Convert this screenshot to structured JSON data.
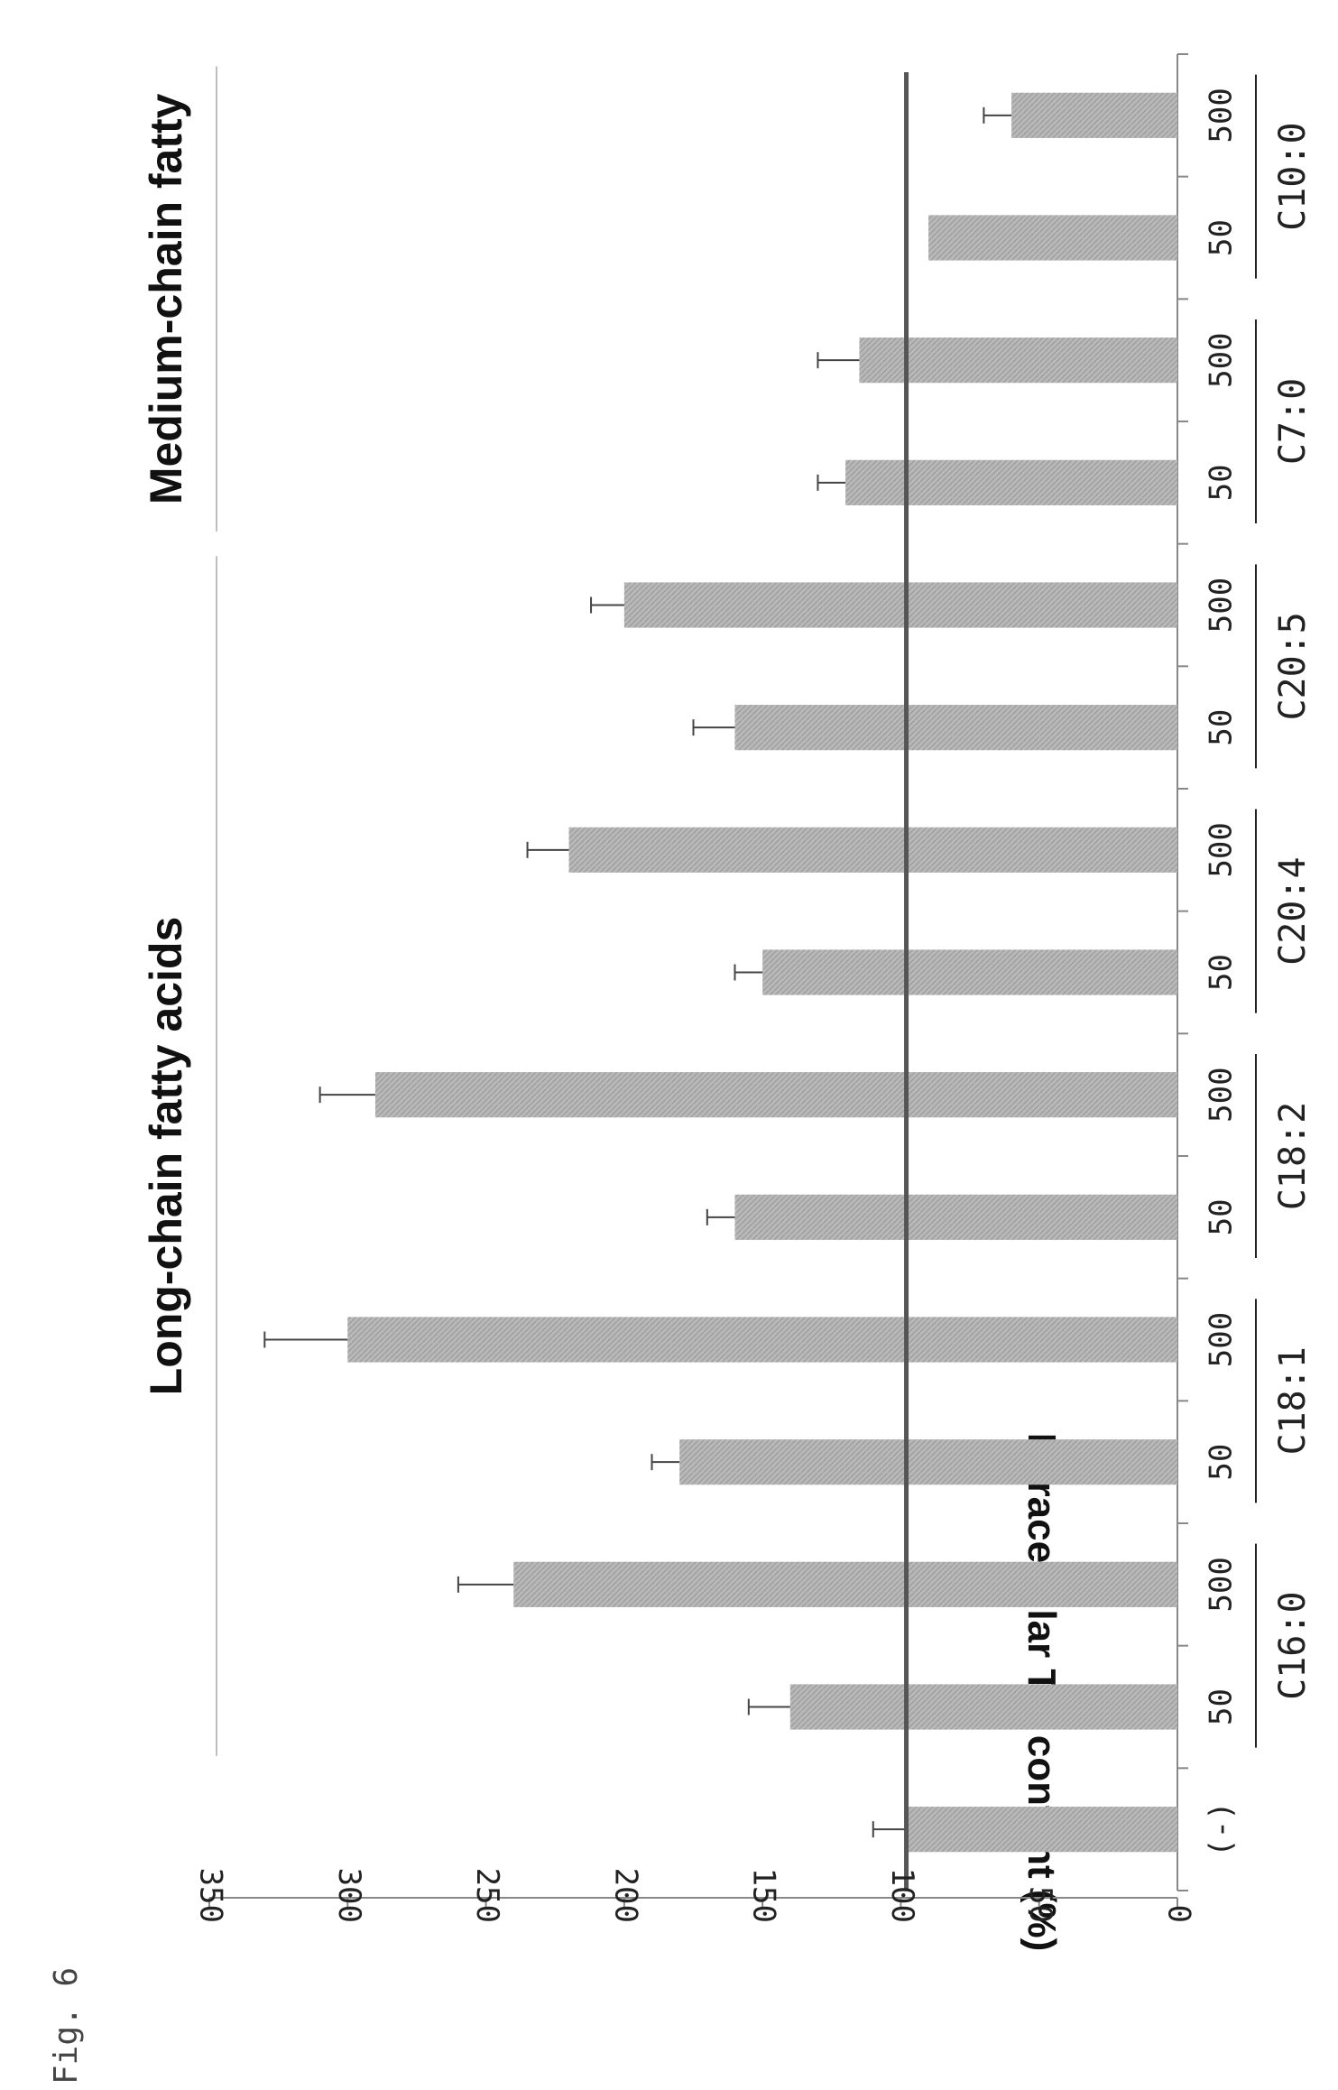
{
  "figure_label": "Fig. 6",
  "colors": {
    "bar": "#b8b8b8",
    "bar_hatch": "#9a9a9a",
    "reference_line": "#555555",
    "axis": "#888888",
    "error_bar": "#444444",
    "text": "#222222"
  },
  "chart_data": {
    "type": "bar",
    "orientation": "rotated 90 degrees clockwise (bars grow leftward)",
    "title": "",
    "ylabel": "Intracellular TG content (%)",
    "xlabel": "",
    "ylim": [
      0,
      350
    ],
    "yticks": [
      0,
      50,
      100,
      150,
      200,
      250,
      300,
      350
    ],
    "grid": false,
    "legend": "none",
    "reference_line_value": 98,
    "categories": [
      "(-)",
      "50",
      "500",
      "50",
      "500",
      "50",
      "500",
      "50",
      "500",
      "50",
      "500",
      "50",
      "500",
      "50",
      "500"
    ],
    "values": [
      98,
      140,
      240,
      180,
      300,
      160,
      290,
      150,
      220,
      160,
      200,
      120,
      115,
      90,
      60
    ],
    "errors": [
      12,
      15,
      20,
      10,
      30,
      10,
      20,
      10,
      15,
      15,
      12,
      10,
      15,
      0,
      10
    ],
    "groups": [
      {
        "label": "C16:0",
        "indices": [
          1,
          2
        ]
      },
      {
        "label": "C18:1",
        "indices": [
          3,
          4
        ]
      },
      {
        "label": "C18:2",
        "indices": [
          5,
          6
        ]
      },
      {
        "label": "C20:4",
        "indices": [
          7,
          8
        ]
      },
      {
        "label": "C20:5",
        "indices": [
          9,
          10
        ]
      },
      {
        "label": "C7:0",
        "indices": [
          11,
          12
        ]
      },
      {
        "label": "C10:0",
        "indices": [
          13,
          14
        ]
      }
    ],
    "brackets": [
      {
        "label": "Long-chain fatty acids",
        "from_index": 1,
        "to_index": 10
      },
      {
        "label": "Medium-chain fatty",
        "from_index": 11,
        "to_index": 14
      }
    ]
  }
}
